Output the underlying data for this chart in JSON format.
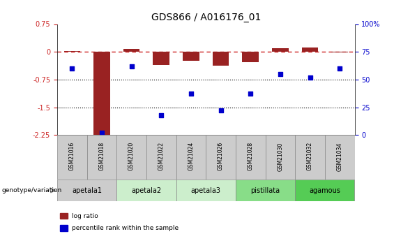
{
  "title": "GDS866 / A016176_01",
  "samples": [
    "GSM21016",
    "GSM21018",
    "GSM21020",
    "GSM21022",
    "GSM21024",
    "GSM21026",
    "GSM21028",
    "GSM21030",
    "GSM21032",
    "GSM21034"
  ],
  "log_ratio": [
    0.02,
    -2.25,
    0.07,
    -0.35,
    -0.25,
    -0.38,
    -0.28,
    0.1,
    0.12,
    -0.02
  ],
  "percentile_rank": [
    60,
    2,
    62,
    18,
    37,
    22,
    37,
    55,
    52,
    60
  ],
  "ylim_left": [
    -2.25,
    0.75
  ],
  "ylim_right": [
    0,
    100
  ],
  "yticks_left": [
    0.75,
    0.0,
    -0.75,
    -1.5,
    -2.25
  ],
  "yticks_right": [
    100,
    75,
    50,
    25,
    0
  ],
  "hlines": [
    -0.75,
    -1.5
  ],
  "bar_color": "#992222",
  "dot_color": "#0000cc",
  "dashed_line_color": "#cc2222",
  "groups": [
    {
      "label": "apetala1",
      "samples": [
        "GSM21016",
        "GSM21018"
      ],
      "color": "#cccccc"
    },
    {
      "label": "apetala2",
      "samples": [
        "GSM21020",
        "GSM21022"
      ],
      "color": "#cceecc"
    },
    {
      "label": "apetala3",
      "samples": [
        "GSM21024",
        "GSM21026"
      ],
      "color": "#cceecc"
    },
    {
      "label": "pistillata",
      "samples": [
        "GSM21028",
        "GSM21030"
      ],
      "color": "#88dd88"
    },
    {
      "label": "agamous",
      "samples": [
        "GSM21032",
        "GSM21034"
      ],
      "color": "#55cc55"
    }
  ],
  "sample_box_color": "#cccccc",
  "genotype_label": "genotype/variation",
  "legend_items": [
    {
      "label": "log ratio",
      "color": "#992222"
    },
    {
      "label": "percentile rank within the sample",
      "color": "#0000cc"
    }
  ],
  "background_color": "#ffffff",
  "title_fontsize": 10,
  "axis_fontsize": 7,
  "label_fontsize": 7,
  "tick_fontsize": 7
}
